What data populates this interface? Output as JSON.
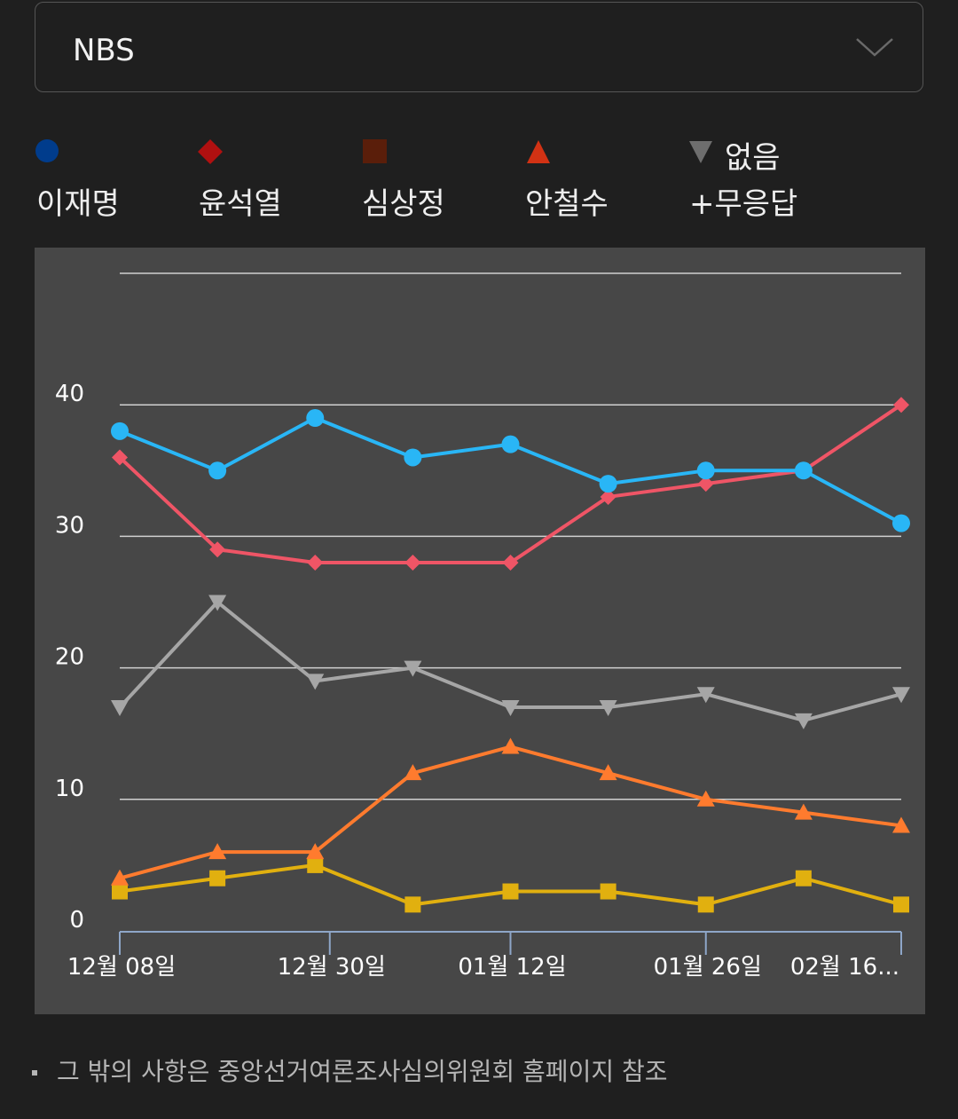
{
  "filter": {
    "selected": "NBS",
    "icon": "chevron-down-icon"
  },
  "legend": [
    {
      "label": "이재명",
      "marker": "circle",
      "color": "#003c8c"
    },
    {
      "label": "윤석열",
      "marker": "diamond",
      "color": "#b01010"
    },
    {
      "label": "심상정",
      "marker": "square",
      "color": "#5a1e0a"
    },
    {
      "label": "안철수",
      "marker": "triangle-up",
      "color": "#d23214"
    },
    {
      "label_line1": "없음",
      "label_line2": "+무응답",
      "marker": "triangle-down",
      "color": "#6e6e6e"
    }
  ],
  "footnote": "그 밖의 사항은 중앙선거여론조사심의위원회 홈페이지 참조",
  "chart_data": {
    "type": "line",
    "y_ticks": [
      "0",
      "10",
      "20",
      "30",
      "40"
    ],
    "ylim": [
      0,
      50
    ],
    "x_tick_labels": [
      "12월 08일",
      "12월 30일",
      "01월 12일",
      "01월 26일",
      "02월 16..."
    ],
    "grid": true,
    "background": "#474747",
    "series": [
      {
        "marker": "circle",
        "color": "#29b6f6",
        "values": [
          38,
          35,
          39,
          36,
          37,
          34,
          35,
          35,
          31
        ]
      },
      {
        "marker": "diamond",
        "color": "#ef5566",
        "values": [
          36,
          29,
          28,
          28,
          28,
          33,
          34,
          35,
          40
        ]
      },
      {
        "marker": "square",
        "color": "#e1b00f",
        "values": [
          3,
          4,
          5,
          2,
          3,
          3,
          2,
          4,
          2
        ]
      },
      {
        "marker": "triangle-up",
        "color": "#ff7b2e",
        "values": [
          4,
          6,
          6,
          12,
          14,
          12,
          10,
          9,
          8
        ]
      },
      {
        "marker": "triangle-down",
        "color": "#a6a6a6",
        "values": [
          17,
          25,
          19,
          20,
          17,
          17,
          18,
          16,
          18
        ]
      }
    ]
  }
}
